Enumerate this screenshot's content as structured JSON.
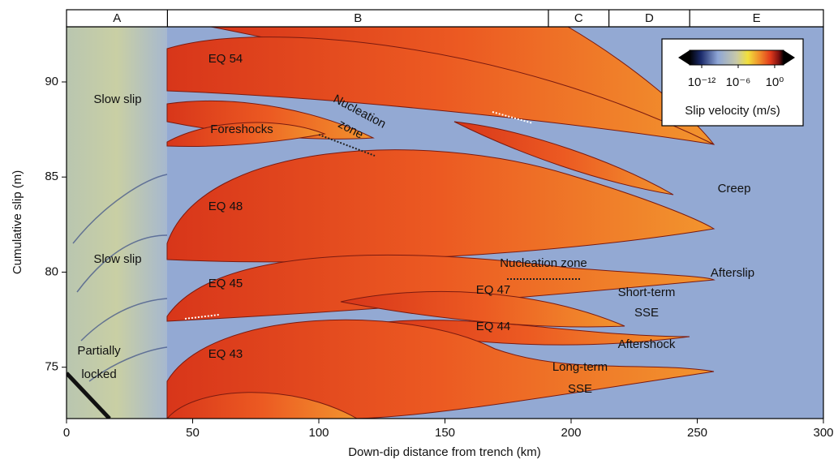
{
  "chart_data": {
    "type": "heatmap",
    "x_label": "Down-dip distance from trench (km)",
    "y_label": "Cumulative slip (m)",
    "xlim": [
      0,
      300
    ],
    "ylim": [
      72.3,
      92.9
    ],
    "xticks": [
      0,
      50,
      100,
      150,
      200,
      250,
      300
    ],
    "yticks": [
      75,
      80,
      85,
      90
    ],
    "regions": [
      {
        "label": "A",
        "range": [
          0,
          40
        ]
      },
      {
        "label": "B",
        "range": [
          40,
          191
        ]
      },
      {
        "label": "C",
        "range": [
          191,
          215
        ]
      },
      {
        "label": "D",
        "range": [
          215,
          247
        ]
      },
      {
        "label": "E",
        "range": [
          247,
          300
        ]
      }
    ],
    "colorbar": {
      "label": "Slip velocity (m/s)",
      "log": true,
      "lim": [
        1e-14,
        30
      ],
      "ticks": [
        {
          "value": 1e-12,
          "label": "10⁻¹²"
        },
        {
          "value": 1e-06,
          "label": "10⁻⁶"
        },
        {
          "value": 1,
          "label": "10⁰"
        }
      ]
    },
    "annotations": [
      "EQ 54",
      "Slow slip",
      "Foreshocks",
      "Nucleation",
      "zone",
      "EQ 48",
      "Creep",
      "Slow slip",
      "Nucleation zone",
      "Afterslip",
      "EQ 45",
      "EQ 47",
      "Short-term",
      "SSE",
      "EQ 44",
      "Aftershock",
      "Partially",
      "locked",
      "EQ 43",
      "Long-term",
      "SSE"
    ]
  }
}
